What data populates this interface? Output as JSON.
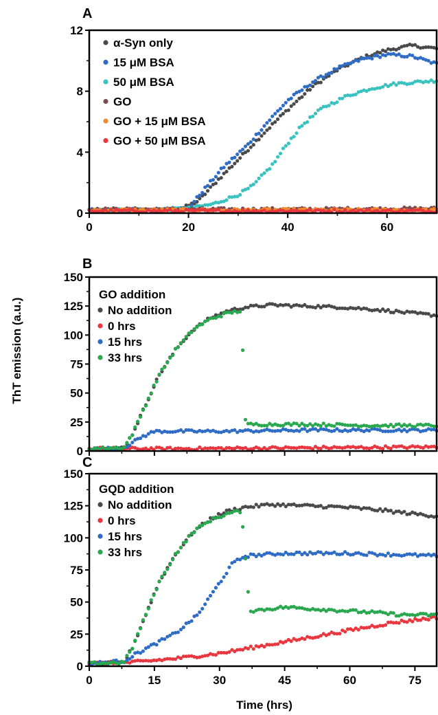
{
  "figure": {
    "ylabel": "ThT emission (a.u.)",
    "xlabel": "Time (hrs)"
  },
  "colors": {
    "dark_gray": "#4a4a4a",
    "blue": "#2f6cc4",
    "cyan": "#39c2c0",
    "brown": "#7a4b52",
    "orange": "#f08a2c",
    "red": "#e8373f",
    "green": "#2aa84f"
  },
  "chart_data": [
    {
      "panel": "A",
      "type": "scatter",
      "xlim": [
        0,
        70
      ],
      "ylim": [
        0,
        12
      ],
      "x_ticks": [
        0,
        20,
        40,
        60
      ],
      "y_ticks": [
        0,
        4,
        8,
        12
      ],
      "legend_title": "",
      "legend_position": "top-left",
      "series": [
        {
          "name": "α-Syn only",
          "color": "#4a4a4a",
          "points": [
            [
              0,
              0.2
            ],
            [
              10,
              0.2
            ],
            [
              18,
              0.2
            ],
            [
              22,
              0.8
            ],
            [
              26,
              2.2
            ],
            [
              30,
              3.5
            ],
            [
              35,
              5.2
            ],
            [
              40,
              6.8
            ],
            [
              45,
              8.3
            ],
            [
              50,
              9.4
            ],
            [
              55,
              10.2
            ],
            [
              60,
              10.7
            ],
            [
              65,
              11.0
            ],
            [
              70,
              10.8
            ]
          ]
        },
        {
          "name": "15 μM BSA",
          "color": "#2f6cc4",
          "points": [
            [
              0,
              0.2
            ],
            [
              10,
              0.2
            ],
            [
              20,
              0.3
            ],
            [
              23,
              1.5
            ],
            [
              27,
              3.0
            ],
            [
              32,
              4.5
            ],
            [
              36,
              6.0
            ],
            [
              40,
              7.4
            ],
            [
              45,
              8.6
            ],
            [
              50,
              9.5
            ],
            [
              55,
              10.1
            ],
            [
              60,
              10.4
            ],
            [
              65,
              10.3
            ],
            [
              70,
              9.8
            ]
          ]
        },
        {
          "name": "50 μM BSA",
          "color": "#39c2c0",
          "points": [
            [
              0,
              0.2
            ],
            [
              10,
              0.2
            ],
            [
              20,
              0.3
            ],
            [
              25,
              0.6
            ],
            [
              30,
              1.2
            ],
            [
              33,
              1.8
            ],
            [
              37,
              3.2
            ],
            [
              40,
              4.6
            ],
            [
              43,
              5.8
            ],
            [
              47,
              6.9
            ],
            [
              52,
              7.7
            ],
            [
              57,
              8.2
            ],
            [
              62,
              8.5
            ],
            [
              66,
              8.6
            ],
            [
              70,
              8.7
            ]
          ]
        },
        {
          "name": "GO",
          "color": "#7a4b52",
          "points": [
            [
              0,
              0.25
            ],
            [
              35,
              0.25
            ],
            [
              70,
              0.3
            ]
          ]
        },
        {
          "name": "GO + 15 μM BSA",
          "color": "#f08a2c",
          "points": [
            [
              0,
              0.2
            ],
            [
              35,
              0.2
            ],
            [
              70,
              0.2
            ]
          ]
        },
        {
          "name": "GO + 50 μM BSA",
          "color": "#e8373f",
          "points": [
            [
              0,
              0.15
            ],
            [
              35,
              0.15
            ],
            [
              70,
              0.15
            ]
          ]
        }
      ]
    },
    {
      "panel": "B",
      "type": "scatter",
      "xlim": [
        0,
        80
      ],
      "ylim": [
        0,
        150
      ],
      "x_ticks": [],
      "y_ticks": [
        0,
        25,
        50,
        75,
        100,
        125,
        150
      ],
      "legend_title": "GO addition",
      "legend_position": "top-left",
      "series": [
        {
          "name": "No addition",
          "color": "#4a4a4a",
          "points": [
            [
              0,
              2
            ],
            [
              5,
              2
            ],
            [
              8,
              3
            ],
            [
              10,
              15
            ],
            [
              13,
              40
            ],
            [
              16,
              65
            ],
            [
              20,
              88
            ],
            [
              24,
              105
            ],
            [
              28,
              115
            ],
            [
              32,
              121
            ],
            [
              36,
              124
            ],
            [
              42,
              126
            ],
            [
              50,
              125
            ],
            [
              58,
              124
            ],
            [
              66,
              122
            ],
            [
              74,
              119
            ],
            [
              80,
              117
            ]
          ]
        },
        {
          "name": "0 hrs",
          "color": "#e8373f",
          "points": [
            [
              0,
              2
            ],
            [
              20,
              2
            ],
            [
              40,
              2.5
            ],
            [
              60,
              3
            ],
            [
              80,
              3.5
            ]
          ]
        },
        {
          "name": "15 hrs",
          "color": "#2f6cc4",
          "points": [
            [
              0,
              2
            ],
            [
              7,
              2
            ],
            [
              9,
              5
            ],
            [
              12,
              12
            ],
            [
              15,
              17
            ],
            [
              30,
              17
            ],
            [
              50,
              18
            ],
            [
              70,
              18
            ],
            [
              80,
              18
            ]
          ]
        },
        {
          "name": "33 hrs",
          "color": "#2aa84f",
          "points": [
            [
              0,
              2
            ],
            [
              8,
              3
            ],
            [
              10,
              15
            ],
            [
              13,
              40
            ],
            [
              16,
              65
            ],
            [
              20,
              88
            ],
            [
              24,
              105
            ],
            [
              28,
              114
            ],
            [
              32,
              119
            ],
            [
              35,
              121
            ],
            [
              36,
              23
            ],
            [
              50,
              23
            ],
            [
              65,
              22
            ],
            [
              80,
              22
            ]
          ]
        }
      ]
    },
    {
      "panel": "C",
      "type": "scatter",
      "xlim": [
        0,
        80
      ],
      "ylim": [
        0,
        150
      ],
      "x_ticks": [
        0,
        15,
        30,
        45,
        60,
        75
      ],
      "y_ticks": [
        0,
        25,
        50,
        75,
        100,
        125,
        150
      ],
      "legend_title": "GQD addition",
      "legend_position": "top-left",
      "series": [
        {
          "name": "No addition",
          "color": "#4a4a4a",
          "points": [
            [
              0,
              2
            ],
            [
              5,
              2
            ],
            [
              8,
              3
            ],
            [
              10,
              15
            ],
            [
              13,
              40
            ],
            [
              16,
              65
            ],
            [
              20,
              88
            ],
            [
              24,
              105
            ],
            [
              28,
              115
            ],
            [
              32,
              121
            ],
            [
              36,
              124
            ],
            [
              42,
              126
            ],
            [
              50,
              125
            ],
            [
              58,
              124
            ],
            [
              66,
              122
            ],
            [
              74,
              119
            ],
            [
              80,
              117
            ]
          ]
        },
        {
          "name": "0 hrs",
          "color": "#e8373f",
          "points": [
            [
              0,
              2
            ],
            [
              10,
              3
            ],
            [
              20,
              6
            ],
            [
              30,
              10
            ],
            [
              40,
              16
            ],
            [
              50,
              22
            ],
            [
              60,
              28
            ],
            [
              70,
              34
            ],
            [
              80,
              38
            ]
          ]
        },
        {
          "name": "15 hrs",
          "color": "#2f6cc4",
          "points": [
            [
              0,
              2
            ],
            [
              8,
              4
            ],
            [
              11,
              10
            ],
            [
              15,
              17
            ],
            [
              20,
              26
            ],
            [
              25,
              40
            ],
            [
              30,
              65
            ],
            [
              33,
              80
            ],
            [
              36,
              86
            ],
            [
              45,
              88
            ],
            [
              60,
              88
            ],
            [
              70,
              87
            ],
            [
              80,
              86
            ]
          ]
        },
        {
          "name": "33 hrs",
          "color": "#2aa84f",
          "points": [
            [
              0,
              2
            ],
            [
              8,
              3
            ],
            [
              10,
              15
            ],
            [
              13,
              40
            ],
            [
              16,
              65
            ],
            [
              20,
              88
            ],
            [
              24,
              105
            ],
            [
              28,
              114
            ],
            [
              32,
              119
            ],
            [
              35,
              121
            ],
            [
              37,
              43
            ],
            [
              45,
              46
            ],
            [
              55,
              44
            ],
            [
              65,
              42
            ],
            [
              72,
              40
            ],
            [
              80,
              40
            ]
          ]
        }
      ]
    }
  ]
}
